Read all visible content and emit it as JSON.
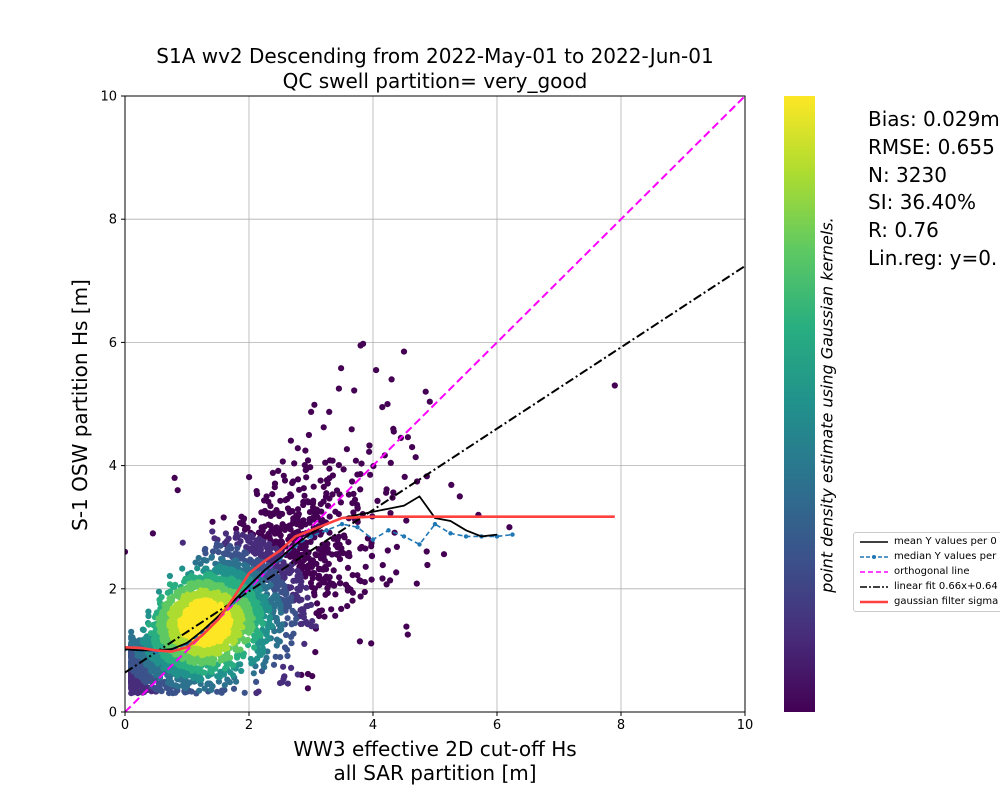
{
  "figure": {
    "title_line1": "S1A wv2 Descending from 2022-May-01 to 2022-Jun-01",
    "title_line2": "QC swell partition= very_good",
    "xlabel_line1": "WW3 effective 2D cut-off Hs",
    "xlabel_line2": "all SAR partition [m]",
    "ylabel": "S-1 OSW partition Hs [m]",
    "colorbar_label": "point density estimate using Gaussian kernels."
  },
  "stats": {
    "bias": "Bias: 0.029m",
    "rmse": "RMSE: 0.655",
    "n": "N: 3230",
    "si": "SI: 36.40%",
    "r": "R: 0.76",
    "linreg": "Lin.reg: y=0."
  },
  "legend": {
    "items": [
      {
        "label": "mean Y values per 0",
        "color": "#000000",
        "style": "solid"
      },
      {
        "label": "median Y values per",
        "color": "#1f77b4",
        "style": "dashed-marker"
      },
      {
        "label": "orthogonal line",
        "color": "#ff00ff",
        "style": "dashed"
      },
      {
        "label": "linear fit 0.66x+0.64",
        "color": "#000000",
        "style": "dashdot"
      },
      {
        "label": "gaussian filter sigma",
        "color": "#ff4040",
        "style": "solid-thick"
      }
    ]
  },
  "colors": {
    "mean": "#000000",
    "median": "#1f77b4",
    "orthogonal": "#ff00ff",
    "linfit": "#000000",
    "gaussian": "#ff4040"
  },
  "chart_data": {
    "type": "scatter",
    "xlim": [
      0,
      10
    ],
    "ylim": [
      0,
      10
    ],
    "xticks": [
      0,
      2,
      4,
      6,
      8,
      10
    ],
    "yticks": [
      0,
      2,
      4,
      6,
      8,
      10
    ],
    "grid": true,
    "colormap": "viridis",
    "legend_position": "right, outside",
    "n_points": 3230,
    "linear_fit": {
      "slope": 0.66,
      "intercept": 0.64
    },
    "orthogonal_line": {
      "slope": 1,
      "intercept": 0
    },
    "mean_curve": {
      "x": [
        0.0,
        0.25,
        0.5,
        0.75,
        1.0,
        1.25,
        1.5,
        1.75,
        2.0,
        2.25,
        2.5,
        2.75,
        3.0,
        3.25,
        3.5,
        3.75,
        4.0,
        4.25,
        4.5,
        4.75,
        5.0,
        5.25,
        5.5,
        5.75,
        6.0
      ],
      "y": [
        1.02,
        1.0,
        1.0,
        1.02,
        1.12,
        1.32,
        1.55,
        1.8,
        2.05,
        2.3,
        2.5,
        2.72,
        2.9,
        3.05,
        3.15,
        3.2,
        3.25,
        3.3,
        3.35,
        3.5,
        3.15,
        3.1,
        2.95,
        2.85,
        2.88
      ]
    },
    "median_curve": {
      "x": [
        0.0,
        0.25,
        0.5,
        0.75,
        1.0,
        1.25,
        1.5,
        1.75,
        2.0,
        2.25,
        2.5,
        2.75,
        3.0,
        3.25,
        3.5,
        3.75,
        4.0,
        4.25,
        4.5,
        4.75,
        5.0,
        5.25,
        5.5,
        5.75,
        6.0,
        6.25
      ],
      "y": [
        1.02,
        1.0,
        0.98,
        1.0,
        1.1,
        1.3,
        1.52,
        1.78,
        2.02,
        2.28,
        2.48,
        2.7,
        2.85,
        2.95,
        3.05,
        3.0,
        2.8,
        2.95,
        2.85,
        2.72,
        3.05,
        2.9,
        2.85,
        2.85,
        2.85,
        2.88
      ]
    },
    "gaussian_curve": {
      "x": [
        0.0,
        0.25,
        0.5,
        0.75,
        1.0,
        1.25,
        1.5,
        1.75,
        2.0,
        2.25,
        2.5,
        2.75,
        3.0,
        3.25,
        3.5,
        3.75,
        4.0,
        5.0,
        6.0,
        7.0,
        7.9
      ],
      "y": [
        1.05,
        1.04,
        1.0,
        0.98,
        1.05,
        1.25,
        1.5,
        1.85,
        2.25,
        2.45,
        2.62,
        2.85,
        2.95,
        3.05,
        3.15,
        3.16,
        3.17,
        3.17,
        3.17,
        3.17,
        3.17
      ]
    },
    "outliers": [
      {
        "x": 3.8,
        "y": 5.95
      },
      {
        "x": 4.5,
        "y": 5.85
      },
      {
        "x": 4.05,
        "y": 5.55
      },
      {
        "x": 4.3,
        "y": 5.4
      },
      {
        "x": 3.45,
        "y": 5.25
      },
      {
        "x": 7.9,
        "y": 5.3
      },
      {
        "x": 4.85,
        "y": 5.2
      },
      {
        "x": 4.15,
        "y": 4.95
      },
      {
        "x": 4.45,
        "y": 4.45
      },
      {
        "x": 5.4,
        "y": 3.5
      },
      {
        "x": 5.7,
        "y": 3.2
      },
      {
        "x": 6.2,
        "y": 3.0
      },
      {
        "x": 0.8,
        "y": 3.8
      },
      {
        "x": 0.85,
        "y": 3.6
      },
      {
        "x": 0.0,
        "y": 2.6
      },
      {
        "x": 0.45,
        "y": 2.9
      },
      {
        "x": 0.1,
        "y": 0.6
      }
    ]
  }
}
